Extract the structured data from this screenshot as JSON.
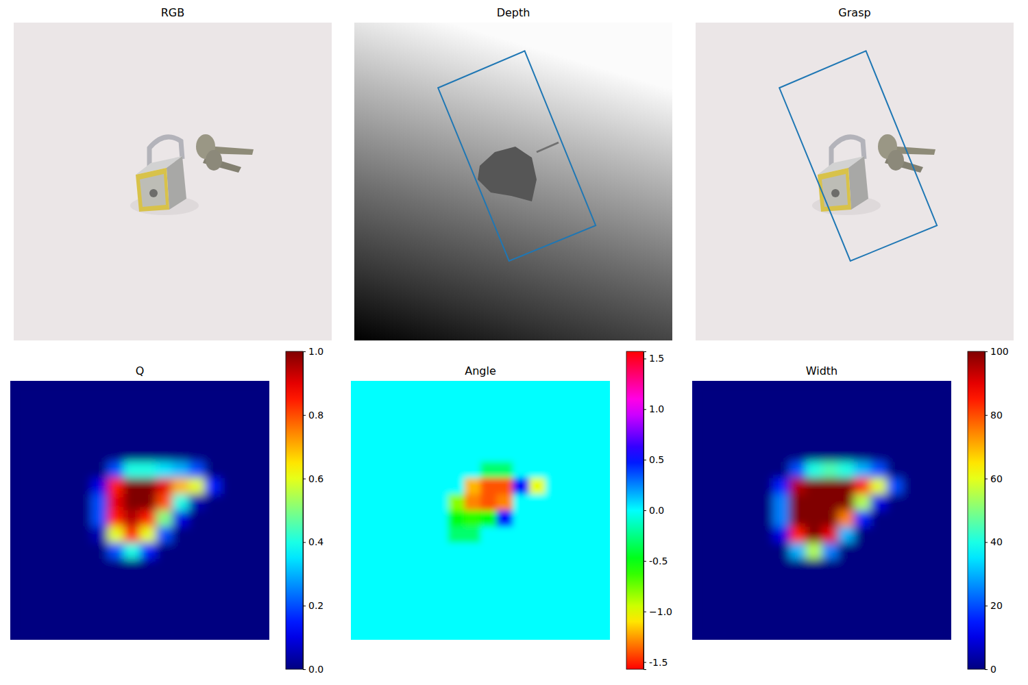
{
  "chart_data": [
    {
      "type": "image",
      "title": "RGB",
      "tick_labels": false
    },
    {
      "type": "image",
      "title": "Depth",
      "tick_labels": false,
      "xlim": [
        0,
        224
      ],
      "ylim": [
        224,
        0
      ],
      "x": [
        59,
        120,
        170,
        109
      ],
      "y": [
        46,
        20,
        143,
        168
      ],
      "color": "#1f77b4"
    },
    {
      "type": "image",
      "title": "Grasp",
      "tick_labels": false,
      "xlim": [
        0,
        224
      ],
      "ylim": [
        224,
        0
      ],
      "x": [
        59,
        120,
        170,
        109
      ],
      "y": [
        46,
        20,
        143,
        168
      ],
      "color": "#1f77b4"
    },
    {
      "type": "heatmap",
      "title": "Q",
      "tick_labels": false,
      "color": "jet",
      "colorbar_lim": [
        0,
        1
      ],
      "colorbar_ticks": [
        {
          "value": 0,
          "label": "0.0"
        },
        0.2,
        0.4,
        0.6,
        0.8,
        {
          "value": 1,
          "label": "1.0"
        }
      ],
      "values": [
        [
          0,
          0,
          0,
          0,
          0,
          0,
          0,
          0,
          0,
          0,
          0,
          0,
          0,
          0,
          0,
          0
        ],
        [
          0,
          0,
          0,
          0,
          0,
          0,
          0,
          0,
          0,
          0,
          0,
          0,
          0,
          0,
          0,
          0
        ],
        [
          0,
          0,
          0,
          0,
          0,
          0,
          0,
          0,
          0,
          0,
          0,
          0,
          0,
          0,
          0,
          0
        ],
        [
          0,
          0,
          0,
          0,
          0,
          0,
          0,
          0,
          0,
          0,
          0,
          0,
          0,
          0,
          0,
          0
        ],
        [
          0,
          0,
          0,
          0,
          0,
          0,
          0,
          0,
          0,
          0,
          0,
          0,
          0,
          0,
          0,
          0
        ],
        [
          0,
          0,
          0,
          0,
          0,
          0,
          0.2,
          0.4,
          0.4,
          0.35,
          0.3,
          0.2,
          0,
          0,
          0,
          0
        ],
        [
          0,
          0,
          0,
          0,
          0,
          0.1,
          0.85,
          1,
          1,
          0.9,
          0.7,
          0.6,
          0.15,
          0,
          0,
          0
        ],
        [
          0,
          0,
          0,
          0,
          0,
          0.2,
          0.9,
          1,
          1,
          0.8,
          0.4,
          0.05,
          0,
          0,
          0,
          0
        ],
        [
          0,
          0,
          0,
          0,
          0,
          0.2,
          0.85,
          0.95,
          0.85,
          0.5,
          0.1,
          0,
          0,
          0,
          0,
          0
        ],
        [
          0,
          0,
          0,
          0,
          0,
          0.05,
          0.6,
          0.85,
          0.6,
          0.2,
          0,
          0,
          0,
          0,
          0,
          0
        ],
        [
          0,
          0,
          0,
          0,
          0,
          0,
          0.2,
          0.4,
          0.15,
          0,
          0,
          0,
          0,
          0,
          0,
          0
        ],
        [
          0,
          0,
          0,
          0,
          0,
          0,
          0,
          0,
          0,
          0,
          0,
          0,
          0,
          0,
          0,
          0
        ],
        [
          0,
          0,
          0,
          0,
          0,
          0,
          0,
          0,
          0,
          0,
          0,
          0,
          0,
          0,
          0,
          0
        ],
        [
          0,
          0,
          0,
          0,
          0,
          0,
          0,
          0,
          0,
          0,
          0,
          0,
          0,
          0,
          0,
          0
        ],
        [
          0,
          0,
          0,
          0,
          0,
          0,
          0,
          0,
          0,
          0,
          0,
          0,
          0,
          0,
          0,
          0
        ],
        [
          0,
          0,
          0,
          0,
          0,
          0,
          0,
          0,
          0,
          0,
          0,
          0,
          0,
          0,
          0,
          0
        ]
      ]
    },
    {
      "type": "heatmap",
      "title": "Angle",
      "tick_labels": false,
      "color": "hsv",
      "colorbar_lim": [
        -1.5708,
        1.5708
      ],
      "colorbar_ticks": [
        -1.5,
        {
          "value": -1,
          "label": "−1.0"
        },
        -0.5,
        {
          "value": 0,
          "label": "0.0"
        },
        0.5,
        {
          "value": 1,
          "label": "1.0"
        },
        1.5
      ],
      "values": [
        [
          0,
          0,
          0,
          0,
          0,
          0,
          0,
          0,
          0,
          0,
          0,
          0,
          0,
          0,
          0,
          0
        ],
        [
          0,
          0,
          0,
          0,
          0,
          0,
          0,
          0,
          0,
          0,
          0,
          0,
          0,
          0,
          0,
          0
        ],
        [
          0,
          0,
          0,
          0,
          0,
          0,
          0,
          0,
          0,
          0,
          0,
          0,
          0,
          0,
          0,
          0
        ],
        [
          0,
          0,
          0,
          0,
          0,
          0,
          0,
          0,
          0,
          0,
          0,
          0,
          0,
          0,
          0,
          0
        ],
        [
          0,
          0,
          0,
          0,
          0,
          0,
          0,
          0,
          0,
          0,
          0,
          0,
          0,
          0,
          0,
          0
        ],
        [
          0,
          0,
          0,
          0,
          0,
          0,
          0,
          0,
          -0.3,
          -0.3,
          0,
          0,
          0,
          0,
          0,
          0
        ],
        [
          0,
          0,
          0,
          0,
          0,
          0,
          0,
          -1.2,
          -1.4,
          -1.4,
          0.5,
          -1.0,
          0,
          0,
          0,
          0
        ],
        [
          0,
          0,
          0,
          0,
          0,
          0,
          -0.8,
          -1.3,
          -1.4,
          -1.3,
          0,
          0,
          0,
          0,
          0,
          0
        ],
        [
          0,
          0,
          0,
          0,
          0,
          0,
          -0.5,
          -0.6,
          -0.5,
          0.5,
          0,
          0,
          0,
          0,
          0,
          0
        ],
        [
          0,
          0,
          0,
          0,
          0,
          0,
          -0.3,
          -0.3,
          0,
          0,
          0,
          0,
          0,
          0,
          0,
          0
        ],
        [
          0,
          0,
          0,
          0,
          0,
          0,
          0,
          0,
          0,
          0,
          0,
          0,
          0,
          0,
          0,
          0
        ],
        [
          0,
          0,
          0,
          0,
          0,
          0,
          0,
          0,
          0,
          0,
          0,
          0,
          0,
          0,
          0,
          0
        ],
        [
          0,
          0,
          0,
          0,
          0,
          0,
          0,
          0,
          0,
          0,
          0,
          0,
          0,
          0,
          0,
          0
        ],
        [
          0,
          0,
          0,
          0,
          0,
          0,
          0,
          0,
          0,
          0,
          0,
          0,
          0,
          0,
          0,
          0
        ],
        [
          0,
          0,
          0,
          0,
          0,
          0,
          0,
          0,
          0,
          0,
          0,
          0,
          0,
          0,
          0,
          0
        ],
        [
          0,
          0,
          0,
          0,
          0,
          0,
          0,
          0,
          0,
          0,
          0,
          0,
          0,
          0,
          0,
          0
        ]
      ]
    },
    {
      "type": "heatmap",
      "title": "Width",
      "tick_labels": false,
      "color": "jet",
      "colorbar_lim": [
        0,
        100
      ],
      "colorbar_ticks": [
        0,
        20,
        40,
        60,
        80,
        100
      ],
      "values": [
        [
          0,
          0,
          0,
          0,
          0,
          0,
          0,
          0,
          0,
          0,
          0,
          0,
          0,
          0,
          0,
          0
        ],
        [
          0,
          0,
          0,
          0,
          0,
          0,
          0,
          0,
          0,
          0,
          0,
          0,
          0,
          0,
          0,
          0
        ],
        [
          0,
          0,
          0,
          0,
          0,
          0,
          0,
          0,
          0,
          0,
          0,
          0,
          0,
          0,
          0,
          0
        ],
        [
          0,
          0,
          0,
          0,
          0,
          0,
          0,
          0,
          0,
          0,
          0,
          0,
          0,
          0,
          0,
          0
        ],
        [
          0,
          0,
          0,
          0,
          0,
          0,
          0,
          0,
          0,
          0,
          0,
          0,
          0,
          0,
          0,
          0
        ],
        [
          0,
          0,
          0,
          0,
          0,
          0,
          20,
          40,
          45,
          40,
          30,
          20,
          0,
          0,
          0,
          0
        ],
        [
          0,
          0,
          0,
          0,
          0,
          15,
          95,
          100,
          100,
          100,
          85,
          60,
          20,
          0,
          0,
          0
        ],
        [
          0,
          0,
          0,
          0,
          0,
          25,
          100,
          100,
          100,
          100,
          55,
          10,
          0,
          0,
          0,
          0
        ],
        [
          0,
          0,
          0,
          0,
          0,
          25,
          100,
          100,
          100,
          75,
          15,
          0,
          0,
          0,
          0,
          0
        ],
        [
          0,
          0,
          0,
          0,
          0,
          10,
          85,
          100,
          90,
          30,
          0,
          0,
          0,
          0,
          0,
          0
        ],
        [
          0,
          0,
          0,
          0,
          0,
          0,
          30,
          55,
          25,
          0,
          0,
          0,
          0,
          0,
          0,
          0
        ],
        [
          0,
          0,
          0,
          0,
          0,
          0,
          0,
          0,
          0,
          0,
          0,
          0,
          0,
          0,
          0,
          0
        ],
        [
          0,
          0,
          0,
          0,
          0,
          0,
          0,
          0,
          0,
          0,
          0,
          0,
          0,
          0,
          0,
          0
        ],
        [
          0,
          0,
          0,
          0,
          0,
          0,
          0,
          0,
          0,
          0,
          0,
          0,
          0,
          0,
          0,
          0
        ],
        [
          0,
          0,
          0,
          0,
          0,
          0,
          0,
          0,
          0,
          0,
          0,
          0,
          0,
          0,
          0,
          0
        ],
        [
          0,
          0,
          0,
          0,
          0,
          0,
          0,
          0,
          0,
          0,
          0,
          0,
          0,
          0,
          0,
          0
        ]
      ]
    }
  ]
}
